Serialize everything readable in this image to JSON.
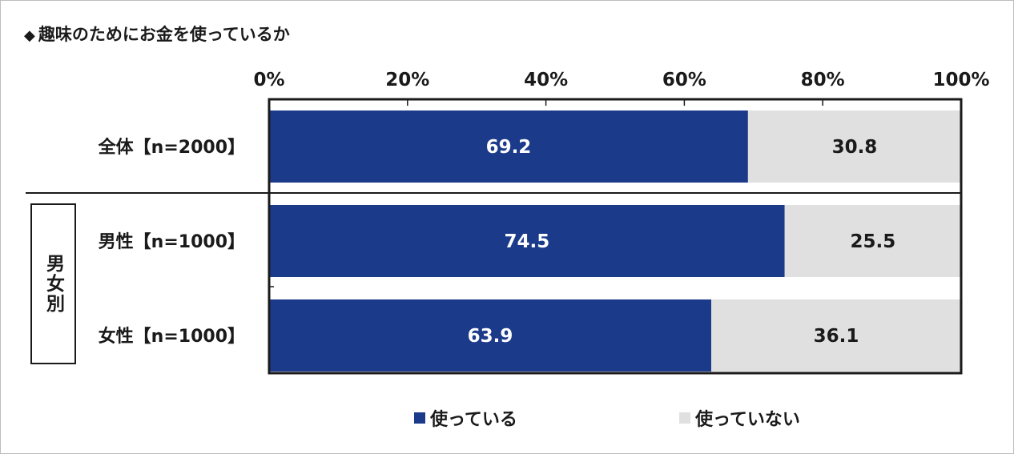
{
  "title": "趣味のためにお金を使っているか",
  "title_marker": "◆",
  "colors": {
    "used": "#1b3a8a",
    "not_used": "#e0e0e0",
    "used_text": "#ffffff",
    "not_used_text": "#1a1a1a"
  },
  "group_label": "男女別",
  "legend": [
    {
      "label": "使っている",
      "color": "#1b3a8a"
    },
    {
      "label": "使っていない",
      "color": "#e0e0e0"
    }
  ],
  "chart_data": {
    "type": "bar",
    "orientation": "horizontal",
    "stacked": true,
    "categories": [
      "全体【n=2000】",
      "男性【n=1000】",
      "女性【n=1000】"
    ],
    "series": [
      {
        "name": "使っている",
        "values": [
          69.2,
          74.5,
          63.9
        ]
      },
      {
        "name": "使っていない",
        "values": [
          30.8,
          25.5,
          36.1
        ]
      }
    ],
    "xlim": [
      0,
      100
    ],
    "xticks": [
      "0%",
      "20%",
      "40%",
      "60%",
      "80%",
      "100%"
    ],
    "legend_position": "bottom",
    "grid": false
  }
}
